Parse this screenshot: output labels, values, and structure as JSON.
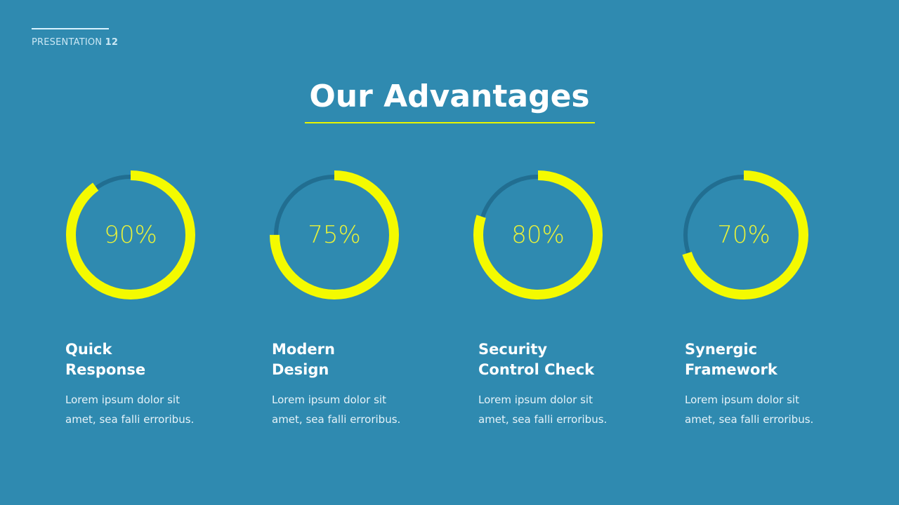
{
  "header": {
    "label": "PRESENTATION",
    "number": "12"
  },
  "title": "Our Advantages",
  "colors": {
    "background": "#2f8ab0",
    "accent": "#f4fa00",
    "track": "#216e91"
  },
  "items": [
    {
      "percent": 90,
      "percent_label": "90%",
      "heading": "Quick\nResponse",
      "text": "Lorem ipsum dolor sit\namet, sea falli erroribus."
    },
    {
      "percent": 75,
      "percent_label": "75%",
      "heading": "Modern\nDesign",
      "text": "Lorem ipsum dolor sit\namet, sea falli erroribus."
    },
    {
      "percent": 80,
      "percent_label": "80%",
      "heading": "Security\nControl Check",
      "text": "Lorem ipsum dolor sit\namet, sea falli erroribus."
    },
    {
      "percent": 70,
      "percent_label": "70%",
      "heading": "Synergic\nFramework",
      "text": "Lorem ipsum dolor sit\namet, sea falli erroribus."
    }
  ]
}
